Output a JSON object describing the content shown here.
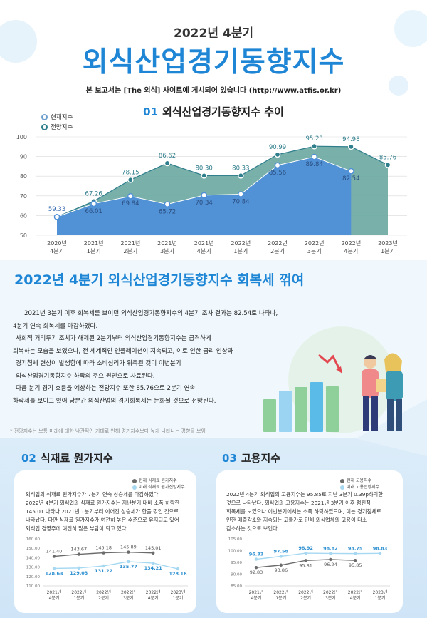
{
  "header": {
    "subtitle": "2022년 4분기",
    "title": "외식산업경기동향지수",
    "note": "본 보고서는 [The 외식] 사이트에 게시되어 있습니다 (http://www.atfis.or.kr)"
  },
  "section1": {
    "num": "01",
    "title": "외식산업경기동향지수 추이",
    "legend_current": "현재지수",
    "legend_future": "전망지수"
  },
  "chart_data": [
    {
      "type": "area",
      "categories": [
        [
          "2020년",
          "4분기"
        ],
        [
          "2021년",
          "1분기"
        ],
        [
          "2021년",
          "2분기"
        ],
        [
          "2021년",
          "3분기"
        ],
        [
          "2021년",
          "4분기"
        ],
        [
          "2022년",
          "1분기"
        ],
        [
          "2022년",
          "2분기"
        ],
        [
          "2022년",
          "3분기"
        ],
        [
          "2022년",
          "4분기"
        ],
        [
          "2023년",
          "1분기"
        ]
      ],
      "series": [
        {
          "name": "현재지수",
          "values": [
            59.33,
            66.01,
            69.84,
            65.72,
            70.34,
            70.84,
            85.56,
            89.84,
            82.54,
            null
          ]
        },
        {
          "name": "전망지수",
          "values": [
            null,
            67.26,
            78.15,
            86.62,
            80.3,
            80.33,
            90.99,
            95.23,
            94.98,
            85.76
          ]
        }
      ],
      "yticks": [
        50,
        60,
        70,
        80,
        90,
        100
      ],
      "ylim": [
        50,
        100
      ],
      "grid": true
    },
    {
      "type": "line",
      "categories": [
        [
          "2021년",
          "4분기"
        ],
        [
          "2022년",
          "1분기"
        ],
        [
          "2022년",
          "2분기"
        ],
        [
          "2022년",
          "3분기"
        ],
        [
          "2022년",
          "4분기"
        ],
        [
          "2023년",
          "1분기"
        ]
      ],
      "series": [
        {
          "name": "현재 식재료 원가지수",
          "values": [
            141.4,
            143.67,
            145.18,
            145.89,
            145.01,
            null
          ]
        },
        {
          "name": "미래 식재료 원가전망지수",
          "values": [
            128.63,
            129.03,
            131.22,
            135.77,
            134.21,
            128.16
          ]
        }
      ],
      "yticks": [
        "110.00",
        "120.00",
        "130.00",
        "140.00",
        "150.00",
        "160.00"
      ],
      "ylim": [
        110,
        160
      ]
    },
    {
      "type": "line",
      "categories": [
        [
          "2021년",
          "4분기"
        ],
        [
          "2022년",
          "1분기"
        ],
        [
          "2022년",
          "2분기"
        ],
        [
          "2022년",
          "3분기"
        ],
        [
          "2022년",
          "4분기"
        ],
        [
          "2023년",
          "1분기"
        ]
      ],
      "series": [
        {
          "name": "현재 고용지수",
          "values": [
            92.83,
            93.86,
            95.81,
            96.24,
            95.85,
            null
          ]
        },
        {
          "name": "미래 고용전망지수",
          "values": [
            96.33,
            97.58,
            98.92,
            98.82,
            98.75,
            98.83
          ]
        }
      ],
      "yticks": [
        "85.00",
        "90.00",
        "95.00",
        "100.00",
        "105.00"
      ],
      "ylim": [
        85,
        105
      ]
    }
  ],
  "section2": {
    "headline": "2022년 4분기 외식산업경기동향지수 회복세 꺾여",
    "paragraphs": [
      "2021년 3분기 이후 회복세를 보이던 외식산업경기동향지수의 4분기 조사 결과는 82.54로 나타나,",
      "4분기 연속 회복세를 마감하였다.",
      "사회적 거리두기 조치가 해제된 2분기부터 외식산업경기동향지수는 급격하게",
      "회복하는 모습을 보였으나, 전 세계적인 인플레이션이 지속되고, 이로 인한 금리 인상과",
      "경기침체 현상이 발생함에 따라 소비심리가 위축된 것이 이번분기",
      "외식산업경기동향지수 하락의 주요 원인으로 사료된다.",
      "다음 분기 경기 흐름을 예상하는 전망지수 또한 85.76으로 2분기 연속",
      "하락세를 보이고 있어 당분간 외식산업의 경기회복세는 둔화될 것으로 전망된다."
    ],
    "footnote": "* 전망지수는 보통 미래에 대한 낙관적인 기대로 인해 경기지수보다 높게 나타나는 경향을 보임"
  },
  "section3": {
    "num": "02",
    "title": "식재료 원가지수",
    "text": [
      "외식업의 식재료 원가지수가 7분기 연속 상승세를 마감하였다.",
      "2022년 4분기 외식업의 식재료 원가지수는 지난분기 대비 소폭 하락한",
      "145.01 나타나 2021년 1분기부터 이어진 상승세가 한풀 꺾인 것으로",
      "나타났다. 다만 식재료 원가지수가 여전히 높은 수준으로 유지되고 있어",
      "외식업 경영주에 여전히 많은 부담이 되고 있다."
    ]
  },
  "section4": {
    "num": "03",
    "title": "고용지수",
    "text": [
      "2022년 4분기 외식업의 고용지수는 95.85로 지난 3분기 0.39p하락한",
      "것으로 나타났다. 외식업의 고용지수는 2021년 3분기 이후 점진적",
      "회복세를 보였으나 이번분기에서는 소폭 하락하였으며, 이는 경기침체로",
      "인한 매출감소와 지속되는 고물가로 인해 외식업체의 고용이 다소",
      "감소하는 것으로 보인다."
    ]
  },
  "colors": {
    "accent": "#1f86d6",
    "current_area": "#4f8fd8",
    "future_area": "#6aa7a1",
    "future_line": "#2f7e8c",
    "mini_current": "#6b6b6b",
    "mini_future": "#a6d8f2"
  }
}
